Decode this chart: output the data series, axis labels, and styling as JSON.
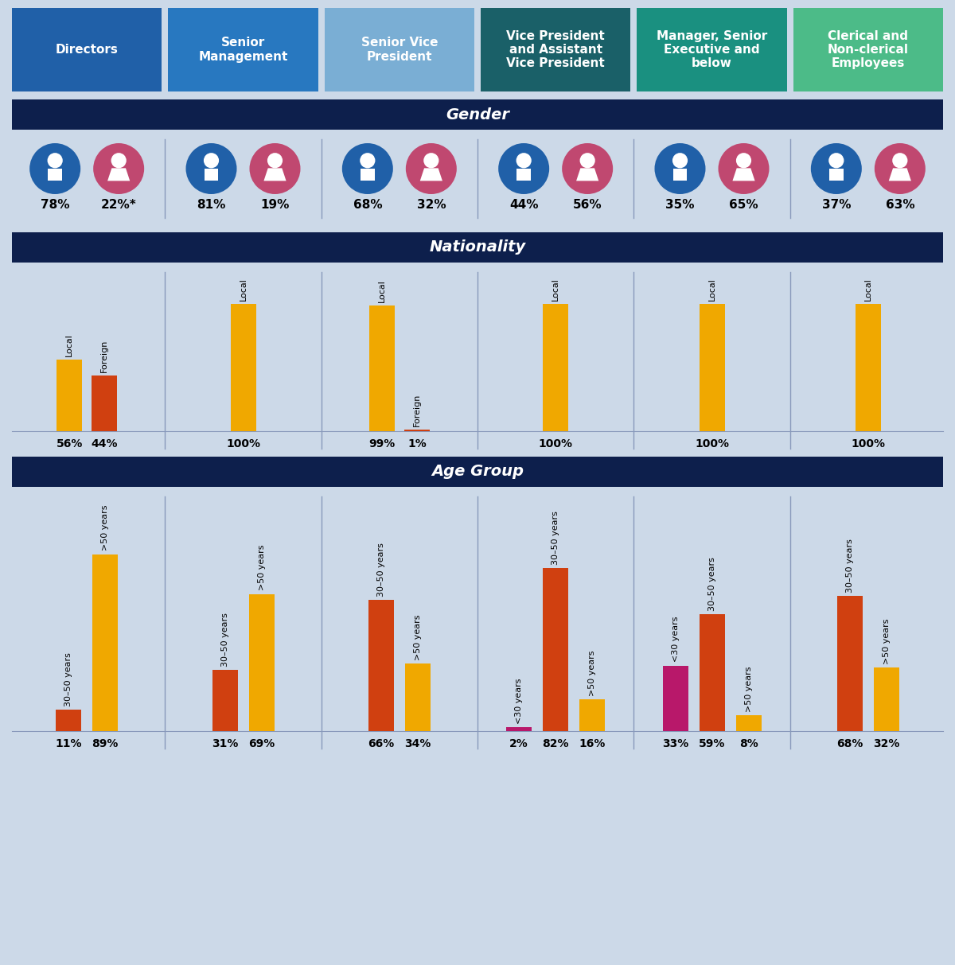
{
  "background_color": "#ccd9e8",
  "section_header_bg": "#0d1f4c",
  "col_headers": [
    {
      "text": "Directors",
      "color": "#2060a8"
    },
    {
      "text": "Senior\nManagement",
      "color": "#2878c0"
    },
    {
      "text": "Senior Vice\nPresident",
      "color": "#7aaed4"
    },
    {
      "text": "Vice President\nand Assistant\nVice President",
      "color": "#1a6068"
    },
    {
      "text": "Manager, Senior\nExecutive and\nbelow",
      "color": "#1a9080"
    },
    {
      "text": "Clerical and\nNon-clerical\nEmployees",
      "color": "#4cbb88"
    }
  ],
  "gender_data": [
    {
      "male": 78,
      "female": 22,
      "female_label": "22%*"
    },
    {
      "male": 81,
      "female": 19,
      "female_label": "19%"
    },
    {
      "male": 68,
      "female": 32,
      "female_label": "32%"
    },
    {
      "male": 44,
      "female": 56,
      "female_label": "56%"
    },
    {
      "male": 35,
      "female": 65,
      "female_label": "65%"
    },
    {
      "male": 37,
      "female": 63,
      "female_label": "63%"
    }
  ],
  "nationality_data": [
    {
      "bars": [
        {
          "label": "Local",
          "value": 56,
          "color": "#f0a800"
        },
        {
          "label": "Foreign",
          "value": 44,
          "color": "#d04010"
        }
      ]
    },
    {
      "bars": [
        {
          "label": "Local",
          "value": 100,
          "color": "#f0a800"
        }
      ]
    },
    {
      "bars": [
        {
          "label": "Local",
          "value": 99,
          "color": "#f0a800"
        },
        {
          "label": "Foreign",
          "value": 1,
          "color": "#d04010"
        }
      ]
    },
    {
      "bars": [
        {
          "label": "Local",
          "value": 100,
          "color": "#f0a800"
        }
      ]
    },
    {
      "bars": [
        {
          "label": "Local",
          "value": 100,
          "color": "#f0a800"
        }
      ]
    },
    {
      "bars": [
        {
          "label": "Local",
          "value": 100,
          "color": "#f0a800"
        }
      ]
    }
  ],
  "age_data": [
    {
      "bars": [
        {
          "label": "30–50 years",
          "value": 11,
          "color": "#d04010"
        },
        {
          "label": ">50 years",
          "value": 89,
          "color": "#f0a800"
        }
      ]
    },
    {
      "bars": [
        {
          "label": "30–50 years",
          "value": 31,
          "color": "#d04010"
        },
        {
          "label": ">50 years",
          "value": 69,
          "color": "#f0a800"
        }
      ]
    },
    {
      "bars": [
        {
          "label": "30–50 years",
          "value": 66,
          "color": "#d04010"
        },
        {
          "label": ">50 years",
          "value": 34,
          "color": "#f0a800"
        }
      ]
    },
    {
      "bars": [
        {
          "label": "<30 years",
          "value": 2,
          "color": "#b8186a"
        },
        {
          "label": "30–50 years",
          "value": 82,
          "color": "#d04010"
        },
        {
          "label": ">50 years",
          "value": 16,
          "color": "#f0a800"
        }
      ]
    },
    {
      "bars": [
        {
          "label": "<30 years",
          "value": 33,
          "color": "#b8186a"
        },
        {
          "label": "30–50 years",
          "value": 59,
          "color": "#d04010"
        },
        {
          "label": ">50 years",
          "value": 8,
          "color": "#f0a800"
        }
      ]
    },
    {
      "bars": [
        {
          "label": "30–50 years",
          "value": 68,
          "color": "#d04010"
        },
        {
          "label": ">50 years",
          "value": 32,
          "color": "#f0a800"
        }
      ]
    }
  ],
  "male_color": "#2060a8",
  "female_color": "#c04870"
}
